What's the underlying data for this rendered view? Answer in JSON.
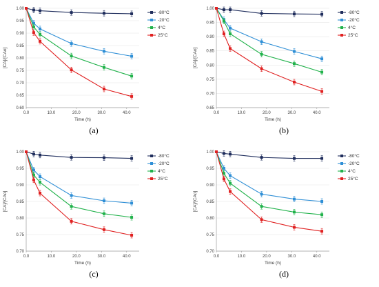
{
  "panels": [
    {
      "caption": "(a)"
    },
    {
      "caption": "(b)"
    },
    {
      "caption": "(c)"
    },
    {
      "caption": "(d)"
    }
  ],
  "chart_data": [
    {
      "type": "line",
      "xlabel": "Time (h)",
      "ylabel": "[CA]/[CAo]",
      "xlim": [
        0,
        45
      ],
      "ylim": [
        0.6,
        1.0
      ],
      "xticks": [
        "0.0",
        "10.0",
        "20.0",
        "30.0",
        "40.0"
      ],
      "yticks": [
        "0.60",
        "0.65",
        "0.70",
        "0.75",
        "0.80",
        "0.85",
        "0.90",
        "0.95",
        "1.00"
      ],
      "x": [
        0,
        3,
        5.5,
        18,
        31,
        42
      ],
      "legend_position": "right",
      "series": [
        {
          "name": "-80°C",
          "color": "#1f2d5c",
          "marker": "square",
          "values": [
            1.0,
            0.993,
            0.99,
            0.983,
            0.98,
            0.978
          ]
        },
        {
          "name": "-20°C",
          "color": "#2f8fd6",
          "marker": "square",
          "values": [
            1.0,
            0.94,
            0.917,
            0.858,
            0.827,
            0.807
          ]
        },
        {
          "name": "4°C",
          "color": "#21b24b",
          "marker": "square",
          "values": [
            1.0,
            0.925,
            0.895,
            0.808,
            0.762,
            0.727
          ]
        },
        {
          "name": "25°C",
          "color": "#e02020",
          "marker": "square",
          "values": [
            1.0,
            0.902,
            0.867,
            0.752,
            0.675,
            0.645
          ]
        }
      ]
    },
    {
      "type": "line",
      "xlabel": "Time (h)",
      "ylabel": "[CA]/[CAo]",
      "xlim": [
        0,
        45
      ],
      "ylim": [
        0.65,
        1.0
      ],
      "xticks": [
        "0.0",
        "10.0",
        "20.0",
        "30.0",
        "40.0"
      ],
      "yticks": [
        "0.65",
        "0.70",
        "0.75",
        "0.80",
        "0.85",
        "0.90",
        "0.95",
        "1.00"
      ],
      "x": [
        0,
        3,
        5.5,
        18,
        31,
        42
      ],
      "legend_position": "right",
      "series": [
        {
          "name": "-80°C",
          "color": "#1f2d5c",
          "marker": "square",
          "values": [
            1.0,
            0.995,
            0.995,
            0.982,
            0.98,
            0.979
          ]
        },
        {
          "name": "-20°C",
          "color": "#2f8fd6",
          "marker": "square",
          "values": [
            1.0,
            0.96,
            0.93,
            0.882,
            0.848,
            0.822
          ]
        },
        {
          "name": "4°C",
          "color": "#21b24b",
          "marker": "square",
          "values": [
            1.0,
            0.955,
            0.91,
            0.838,
            0.805,
            0.775
          ]
        },
        {
          "name": "25°C",
          "color": "#e02020",
          "marker": "square",
          "values": [
            1.0,
            0.91,
            0.858,
            0.787,
            0.74,
            0.707
          ]
        }
      ]
    },
    {
      "type": "line",
      "xlabel": "Time (h)",
      "ylabel": "[CA]/[CAo]",
      "xlim": [
        0,
        45
      ],
      "ylim": [
        0.7,
        1.0
      ],
      "xticks": [
        "0.0",
        "10.0",
        "20.0",
        "30.0",
        "40.0"
      ],
      "yticks": [
        "0.70",
        "0.75",
        "0.80",
        "0.85",
        "0.90",
        "0.95",
        "1.00"
      ],
      "x": [
        0,
        3,
        5.5,
        18,
        31,
        42
      ],
      "legend_position": "right",
      "series": [
        {
          "name": "-80°C",
          "color": "#1f2d5c",
          "marker": "square",
          "values": [
            1.0,
            0.993,
            0.99,
            0.983,
            0.982,
            0.98
          ]
        },
        {
          "name": "-20°C",
          "color": "#2f8fd6",
          "marker": "square",
          "values": [
            1.0,
            0.945,
            0.925,
            0.868,
            0.852,
            0.845
          ]
        },
        {
          "name": "4°C",
          "color": "#21b24b",
          "marker": "square",
          "values": [
            1.0,
            0.93,
            0.908,
            0.835,
            0.813,
            0.802
          ]
        },
        {
          "name": "25°C",
          "color": "#e02020",
          "marker": "square",
          "values": [
            1.0,
            0.915,
            0.875,
            0.79,
            0.765,
            0.748
          ]
        }
      ]
    },
    {
      "type": "line",
      "xlabel": "Time (h)",
      "ylabel": "[CA]/[CAo]",
      "xlim": [
        0,
        45
      ],
      "ylim": [
        0.7,
        1.0
      ],
      "xticks": [
        "0.0",
        "10.0",
        "20.0",
        "30.0",
        "40.0"
      ],
      "yticks": [
        "0.70",
        "0.75",
        "0.80",
        "0.85",
        "0.90",
        "0.95",
        "1.00"
      ],
      "x": [
        0,
        3,
        5.5,
        18,
        31,
        42
      ],
      "legend_position": "right",
      "series": [
        {
          "name": "-80°C",
          "color": "#1f2d5c",
          "marker": "square",
          "values": [
            1.0,
            0.995,
            0.993,
            0.983,
            0.98,
            0.98
          ]
        },
        {
          "name": "-20°C",
          "color": "#2f8fd6",
          "marker": "square",
          "values": [
            1.0,
            0.95,
            0.928,
            0.872,
            0.857,
            0.85
          ]
        },
        {
          "name": "4°C",
          "color": "#21b24b",
          "marker": "square",
          "values": [
            1.0,
            0.935,
            0.905,
            0.835,
            0.818,
            0.81
          ]
        },
        {
          "name": "25°C",
          "color": "#e02020",
          "marker": "square",
          "values": [
            1.0,
            0.918,
            0.88,
            0.795,
            0.772,
            0.76
          ]
        }
      ]
    }
  ]
}
